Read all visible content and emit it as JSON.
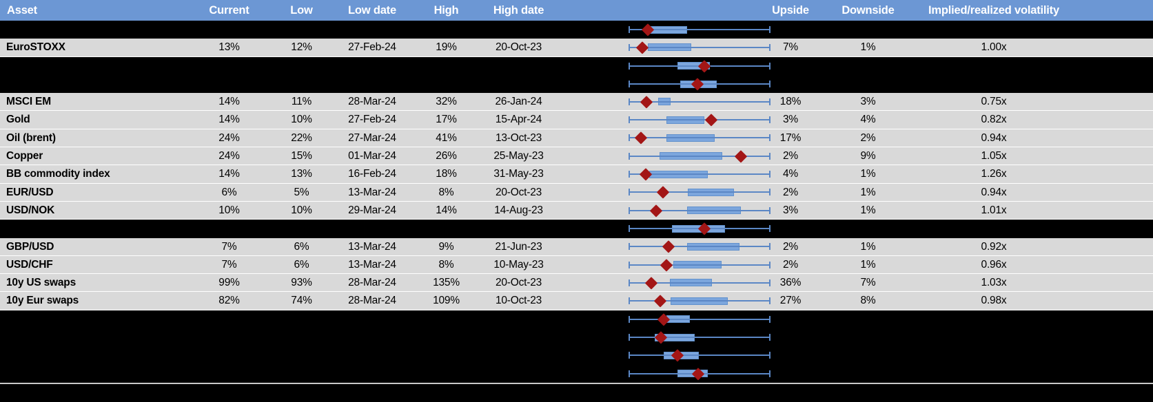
{
  "header": {
    "columns": [
      "Asset",
      "Current",
      "Low",
      "Low date",
      "High",
      "High date",
      "",
      "Upside",
      "Downside",
      "Implied/realized volatility"
    ]
  },
  "colors": {
    "header_bg": "#6c97d4",
    "header_text": "#ffffff",
    "row_bg": "#d9d9d9",
    "hidden_row_bg": "#000000",
    "whisker_line": "#5b87c5",
    "box_fill": "#7ca6dd",
    "box_border": "#6191cd",
    "diamond": "#a31616",
    "separator_line": "#c9c9c9"
  },
  "rows": [
    {
      "type": "hidden",
      "plot": {
        "box_lo": 15.0,
        "box_hi": 41.3,
        "diamond": 13.6
      }
    },
    {
      "type": "data",
      "asset": "EuroSTOXX",
      "current": "13%",
      "low": "12%",
      "low_date": "27-Feb-24",
      "high": "19%",
      "high_date": "20-Oct-23",
      "upside": "7%",
      "downside": "1%",
      "vol": "1.00x",
      "plot": {
        "box_lo": 13.6,
        "box_hi": 44.2,
        "diamond": 9.7
      }
    },
    {
      "type": "hidden",
      "plot": {
        "box_lo": 34.5,
        "box_hi": 57.3,
        "diamond": 53.4
      }
    },
    {
      "type": "hidden",
      "plot": {
        "box_lo": 36.4,
        "box_hi": 62.1,
        "diamond": 48.5
      }
    },
    {
      "type": "data",
      "asset": "MSCI EM",
      "current": "14%",
      "low": "11%",
      "low_date": "28-Mar-24",
      "high": "32%",
      "high_date": "26-Jan-24",
      "upside": "18%",
      "downside": "3%",
      "vol": "0.75x",
      "plot": {
        "box_lo": 20.9,
        "box_hi": 29.6,
        "diamond": 12.6
      }
    },
    {
      "type": "data",
      "asset": "Gold",
      "current": "14%",
      "low": "10%",
      "low_date": "27-Feb-24",
      "high": "17%",
      "high_date": "15-Apr-24",
      "upside": "3%",
      "downside": "4%",
      "vol": "0.82x",
      "plot": {
        "box_lo": 26.7,
        "box_hi": 53.4,
        "diamond": 58.3
      }
    },
    {
      "type": "data",
      "asset": "Oil (brent)",
      "current": "24%",
      "low": "22%",
      "low_date": "27-Mar-24",
      "high": "41%",
      "high_date": "13-Oct-23",
      "upside": "17%",
      "downside": "2%",
      "vol": "0.94x",
      "plot": {
        "box_lo": 26.7,
        "box_hi": 60.7,
        "diamond": 8.7
      }
    },
    {
      "type": "data",
      "asset": "Copper",
      "current": "24%",
      "low": "15%",
      "low_date": "01-Mar-24",
      "high": "26%",
      "high_date": "25-May-23",
      "upside": "2%",
      "downside": "9%",
      "vol": "1.05x",
      "plot": {
        "box_lo": 21.8,
        "box_hi": 66.0,
        "diamond": 79.1
      }
    },
    {
      "type": "data",
      "asset": "BB commodity index",
      "current": "14%",
      "low": "13%",
      "low_date": "16-Feb-24",
      "high": "18%",
      "high_date": "31-May-23",
      "upside": "4%",
      "downside": "1%",
      "vol": "1.26x",
      "plot": {
        "box_lo": 14.6,
        "box_hi": 55.8,
        "diamond": 12.1
      }
    },
    {
      "type": "data",
      "asset": "EUR/USD",
      "current": "6%",
      "low": "5%",
      "low_date": "13-Mar-24",
      "high": "8%",
      "high_date": "20-Oct-23",
      "upside": "2%",
      "downside": "1%",
      "vol": "0.94x",
      "plot": {
        "box_lo": 41.7,
        "box_hi": 74.3,
        "diamond": 24.3
      }
    },
    {
      "type": "data",
      "asset": "USD/NOK",
      "current": "10%",
      "low": "10%",
      "low_date": "29-Mar-24",
      "high": "14%",
      "high_date": "14-Aug-23",
      "upside": "3%",
      "downside": "1%",
      "vol": "1.01x",
      "plot": {
        "box_lo": 41.3,
        "box_hi": 79.1,
        "diamond": 19.4
      }
    },
    {
      "type": "hidden",
      "plot": {
        "box_lo": 30.6,
        "box_hi": 68.0,
        "diamond": 53.4
      }
    },
    {
      "type": "data",
      "asset": "GBP/USD",
      "current": "7%",
      "low": "6%",
      "low_date": "13-Mar-24",
      "high": "9%",
      "high_date": "21-Jun-23",
      "upside": "2%",
      "downside": "1%",
      "vol": "0.92x",
      "plot": {
        "box_lo": 41.3,
        "box_hi": 78.2,
        "diamond": 28.2
      }
    },
    {
      "type": "data",
      "asset": "USD/CHF",
      "current": "7%",
      "low": "6%",
      "low_date": "13-Mar-24",
      "high": "8%",
      "high_date": "10-May-23",
      "upside": "2%",
      "downside": "1%",
      "vol": "0.96x",
      "plot": {
        "box_lo": 31.6,
        "box_hi": 65.5,
        "diamond": 26.7
      }
    },
    {
      "type": "data",
      "asset": "10y US swaps",
      "current": "99%",
      "low": "93%",
      "low_date": "28-Mar-24",
      "high": "135%",
      "high_date": "20-Oct-23",
      "upside": "36%",
      "downside": "7%",
      "vol": "1.03x",
      "plot": {
        "box_lo": 29.1,
        "box_hi": 58.7,
        "diamond": 16.0
      }
    },
    {
      "type": "data",
      "asset": "10y Eur swaps",
      "current": "82%",
      "low": "74%",
      "low_date": "28-Mar-24",
      "high": "109%",
      "high_date": "10-Oct-23",
      "upside": "27%",
      "downside": "8%",
      "vol": "0.98x",
      "plot": {
        "box_lo": 29.6,
        "box_hi": 69.9,
        "diamond": 22.3
      }
    },
    {
      "type": "hidden",
      "plot": {
        "box_lo": 26.7,
        "box_hi": 43.2,
        "diamond": 24.8
      }
    },
    {
      "type": "hidden",
      "plot": {
        "box_lo": 18.4,
        "box_hi": 46.6,
        "diamond": 22.8
      }
    },
    {
      "type": "hidden",
      "plot": {
        "box_lo": 24.8,
        "box_hi": 49.5,
        "diamond": 34.5
      }
    },
    {
      "type": "hidden",
      "plot": {
        "box_lo": 34.5,
        "box_hi": 55.8,
        "diamond": 49.0
      }
    }
  ]
}
